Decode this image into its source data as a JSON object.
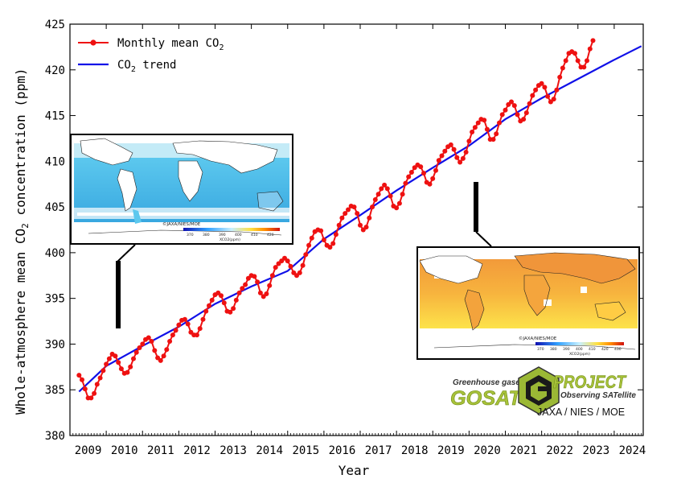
{
  "chart_data": {
    "type": "line",
    "title": "",
    "xlabel": "Year",
    "ylabel": "Whole-atmosphere mean CO",
    "ylabel_sub": "2",
    "ylabel_tail": " concentration (ppm)",
    "xlim": [
      2009.0,
      2024.8
    ],
    "ylim": [
      380,
      425
    ],
    "x_ticks": [
      "2009",
      "2010",
      "2011",
      "2012",
      "2013",
      "2014",
      "2015",
      "2016",
      "2017",
      "2018",
      "2019",
      "2020",
      "2021",
      "2022",
      "2023",
      "2024"
    ],
    "y_ticks": [
      380,
      385,
      390,
      395,
      400,
      405,
      410,
      415,
      420,
      425
    ],
    "legend_position": "top-left",
    "series": [
      {
        "name": "Monthly mean CO2",
        "label_pre": "Monthly mean CO",
        "label_sub": "2",
        "label_post": "",
        "color": "#ee1111",
        "marker": "circle",
        "start": 2009.25,
        "step": 0.08333,
        "values": [
          386.6,
          386.1,
          385.1,
          384.1,
          384.1,
          384.6,
          385.6,
          386.3,
          387.1,
          387.8,
          388.4,
          388.9,
          388.7,
          388.0,
          387.3,
          386.8,
          386.9,
          387.5,
          388.4,
          389.1,
          389.6,
          390.0,
          390.5,
          390.7,
          390.3,
          389.3,
          388.5,
          388.2,
          388.7,
          389.4,
          390.3,
          391.0,
          391.5,
          392.1,
          392.6,
          392.7,
          392.2,
          391.3,
          391.0,
          391.0,
          391.7,
          392.7,
          393.6,
          394.2,
          394.8,
          395.4,
          395.6,
          395.3,
          394.5,
          393.6,
          393.5,
          393.9,
          394.8,
          395.6,
          396.1,
          396.5,
          397.2,
          397.5,
          397.4,
          396.8,
          395.6,
          395.2,
          395.5,
          396.4,
          397.5,
          398.4,
          398.8,
          399.1,
          399.4,
          399.1,
          398.5,
          397.8,
          397.5,
          397.8,
          398.6,
          399.8,
          400.8,
          401.6,
          402.3,
          402.5,
          402.4,
          401.4,
          400.8,
          400.6,
          401.0,
          402.0,
          403.0,
          403.8,
          404.3,
          404.7,
          405.1,
          405.0,
          404.3,
          403.0,
          402.5,
          402.8,
          403.8,
          405.0,
          405.8,
          406.4,
          407.0,
          407.4,
          407.0,
          406.2,
          405.1,
          404.9,
          405.4,
          406.4,
          407.6,
          408.3,
          408.8,
          409.3,
          409.6,
          409.4,
          408.7,
          407.7,
          407.5,
          408.1,
          409.0,
          410.1,
          410.6,
          411.1,
          411.6,
          411.8,
          411.3,
          410.4,
          409.9,
          410.3,
          411.0,
          412.2,
          413.2,
          413.7,
          414.2,
          414.6,
          414.5,
          413.5,
          412.4,
          412.4,
          413.0,
          414.2,
          415.1,
          415.6,
          416.2,
          416.5,
          416.1,
          415.1,
          414.4,
          414.6,
          415.3,
          416.3,
          417.2,
          417.8,
          418.3,
          418.5,
          418.1,
          417.1,
          416.5,
          416.8,
          417.8,
          419.2,
          420.2,
          421.0,
          421.8,
          422.0,
          421.8,
          421.0,
          420.3,
          420.3,
          421.0,
          422.3,
          423.2
        ]
      },
      {
        "name": "CO2 trend",
        "label_pre": "CO",
        "label_sub": "2",
        "label_post": " trend",
        "color": "#1010e8",
        "x": [
          2009.25,
          2010,
          2011,
          2012,
          2013,
          2014,
          2015,
          2016,
          2017,
          2018,
          2019,
          2020,
          2021,
          2022,
          2023,
          2024,
          2024.75
        ],
        "values": [
          384.8,
          387.6,
          389.8,
          391.9,
          394.4,
          396.3,
          398.0,
          401.5,
          404.1,
          406.8,
          409.3,
          411.7,
          414.6,
          416.9,
          419.0,
          421.1,
          422.6
        ]
      }
    ]
  },
  "maps": [
    {
      "credit": "©JAXA/NIES/MOE",
      "colorbar_ticks": [
        "370",
        "380",
        "390",
        "400",
        "410",
        "420"
      ],
      "colorbar_label": "XCO2(ppm)"
    },
    {
      "credit": "©JAXA/NIES/MOE",
      "colorbar_ticks": [
        "370",
        "380",
        "390",
        "400",
        "410",
        "420",
        "430"
      ],
      "colorbar_label": "XCO2(ppm)"
    }
  ],
  "logo": {
    "tagline_top": "Greenhouse gases",
    "gosat": "GOSAT",
    "project": "PROJECT",
    "tagline_bottom": "Observing SATellite",
    "agencies": "JAXA / NIES / MOE"
  }
}
